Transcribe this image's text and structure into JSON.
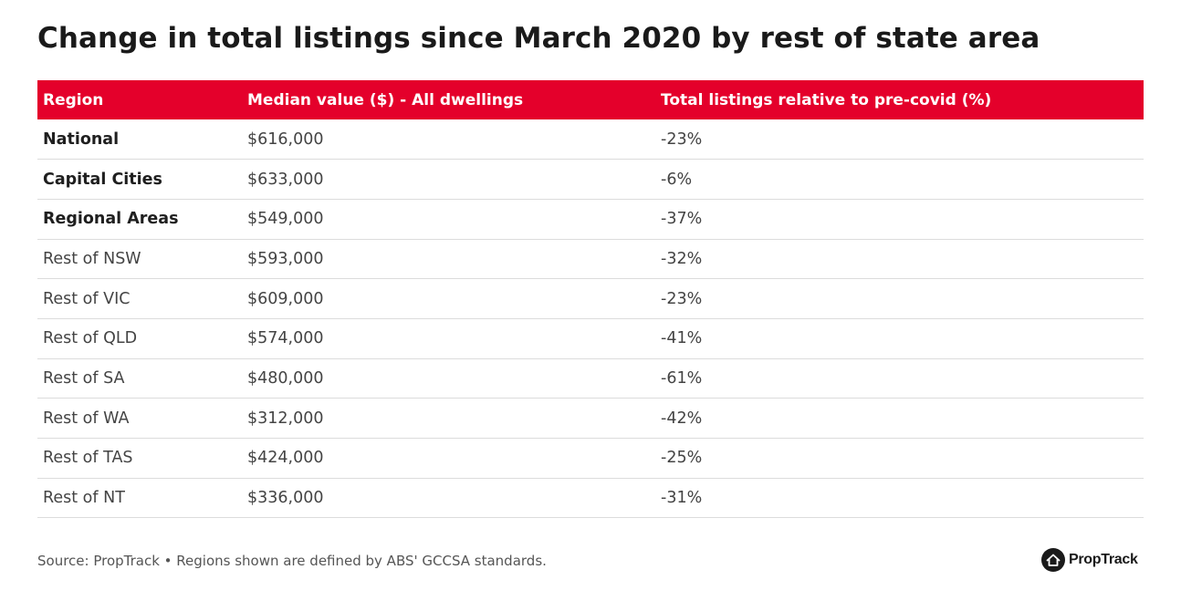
{
  "title": "Change in total listings since March 2020 by rest of state area",
  "table": {
    "headers": [
      "Region",
      "Median value ($) - All dwellings",
      "Total listings relative to pre-covid (%)"
    ]
  },
  "chart_data": {
    "type": "table",
    "title": "Change in total listings since March 2020 by rest of state area",
    "columns": [
      "Region",
      "Median value ($) - All dwellings",
      "Total listings relative to pre-covid (%)"
    ],
    "rows": [
      {
        "region": "National",
        "median_value": "$616,000",
        "listings_change": "-23%",
        "bold": true
      },
      {
        "region": "Capital Cities",
        "median_value": "$633,000",
        "listings_change": "-6%",
        "bold": true
      },
      {
        "region": "Regional Areas",
        "median_value": "$549,000",
        "listings_change": "-37%",
        "bold": true
      },
      {
        "region": "Rest of NSW",
        "median_value": "$593,000",
        "listings_change": "-32%",
        "bold": false
      },
      {
        "region": "Rest of VIC",
        "median_value": "$609,000",
        "listings_change": "-23%",
        "bold": false
      },
      {
        "region": "Rest of QLD",
        "median_value": "$574,000",
        "listings_change": "-41%",
        "bold": false
      },
      {
        "region": "Rest of SA",
        "median_value": "$480,000",
        "listings_change": "-61%",
        "bold": false
      },
      {
        "region": "Rest of WA",
        "median_value": "$312,000",
        "listings_change": "-42%",
        "bold": false
      },
      {
        "region": "Rest of TAS",
        "median_value": "$424,000",
        "listings_change": "-25%",
        "bold": false
      },
      {
        "region": "Rest of NT",
        "median_value": "$336,000",
        "listings_change": "-31%",
        "bold": false
      }
    ]
  },
  "footer": {
    "source": "Source: PropTrack • Regions shown are defined by ABS' GCCSA standards.",
    "brand": "PropTrack",
    "brand_icon": "house-logo-icon"
  },
  "colors": {
    "header_bg": "#e4002b",
    "header_text": "#ffffff",
    "row_border": "#dcdcdc",
    "title_text": "#1a1a1a"
  }
}
